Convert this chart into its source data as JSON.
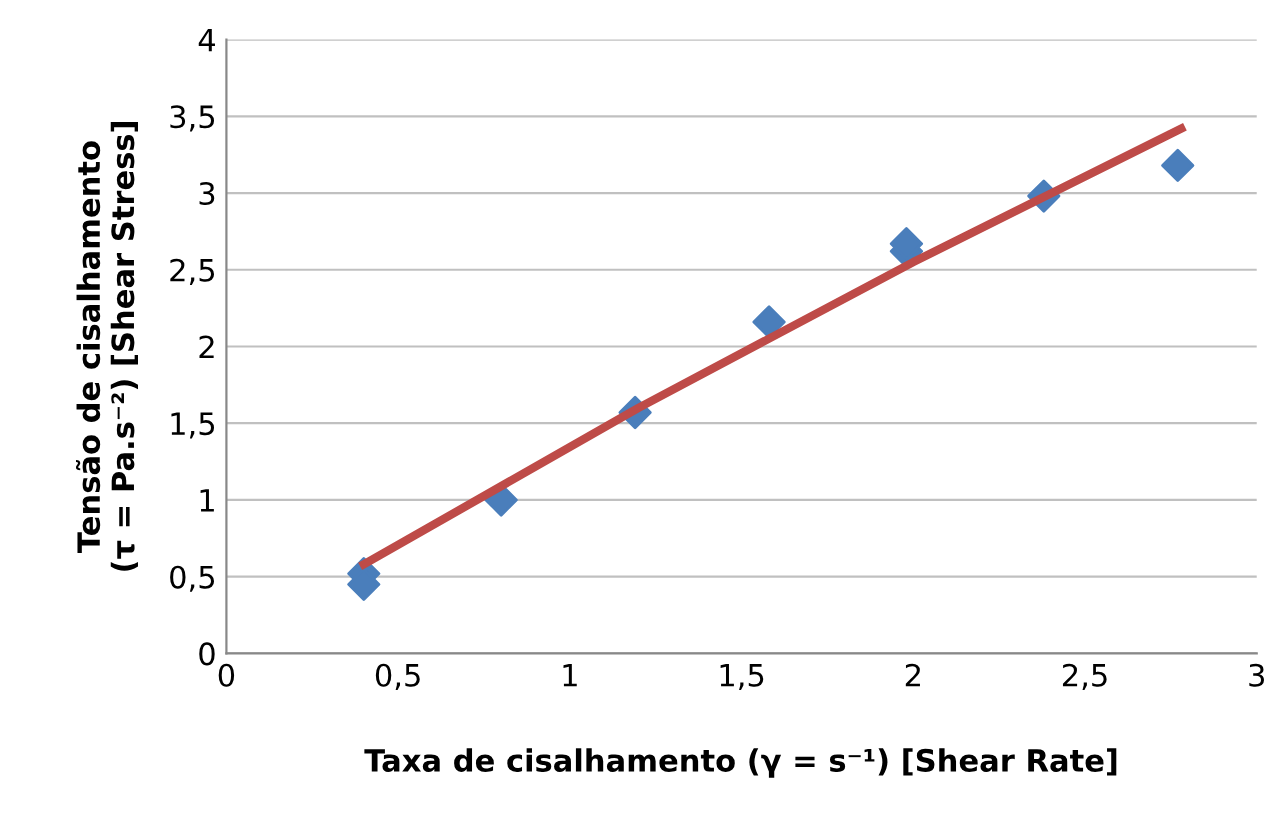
{
  "chart_data": {
    "type": "scatter",
    "xlabel": "Taxa de cisalhamento (γ = s⁻¹) [Shear Rate]",
    "ylabel": "Tensão de cisalhamento\n(τ = Pa.s⁻²) [Shear Stress]",
    "series": [
      {
        "color": "#4a7ebb",
        "marker": "diamond",
        "x": [
          0.4,
          0.4,
          0.8,
          1.19,
          1.58,
          1.98,
          1.98,
          2.38,
          2.77
        ],
        "values": [
          0.52,
          0.45,
          1.0,
          1.57,
          2.16,
          2.62,
          2.67,
          2.98,
          3.18
        ]
      },
      {
        "type": "line",
        "color": "#be4b48",
        "marker": "none",
        "line_style": "solid",
        "x": [
          0.4,
          1.2,
          2.0,
          2.78
        ],
        "values": [
          0.58,
          1.6,
          2.55,
          3.42
        ]
      }
    ],
    "xlim": [
      0,
      3
    ],
    "ylim": [
      0,
      4
    ],
    "xticks": [
      0,
      {
        "value": 0.5,
        "label": "0,5"
      },
      1,
      {
        "value": 1.5,
        "label": "1,5"
      },
      2,
      {
        "value": 2.5,
        "label": "2,5"
      },
      3
    ],
    "yticks": [
      0,
      {
        "value": 0.5,
        "label": "0,5"
      },
      1,
      {
        "value": 1.5,
        "label": "1,5"
      },
      2,
      {
        "value": 2.5,
        "label": "2,5"
      },
      3,
      {
        "value": 3.5,
        "label": "3,5"
      },
      4
    ],
    "grid": "y",
    "legend": false
  }
}
